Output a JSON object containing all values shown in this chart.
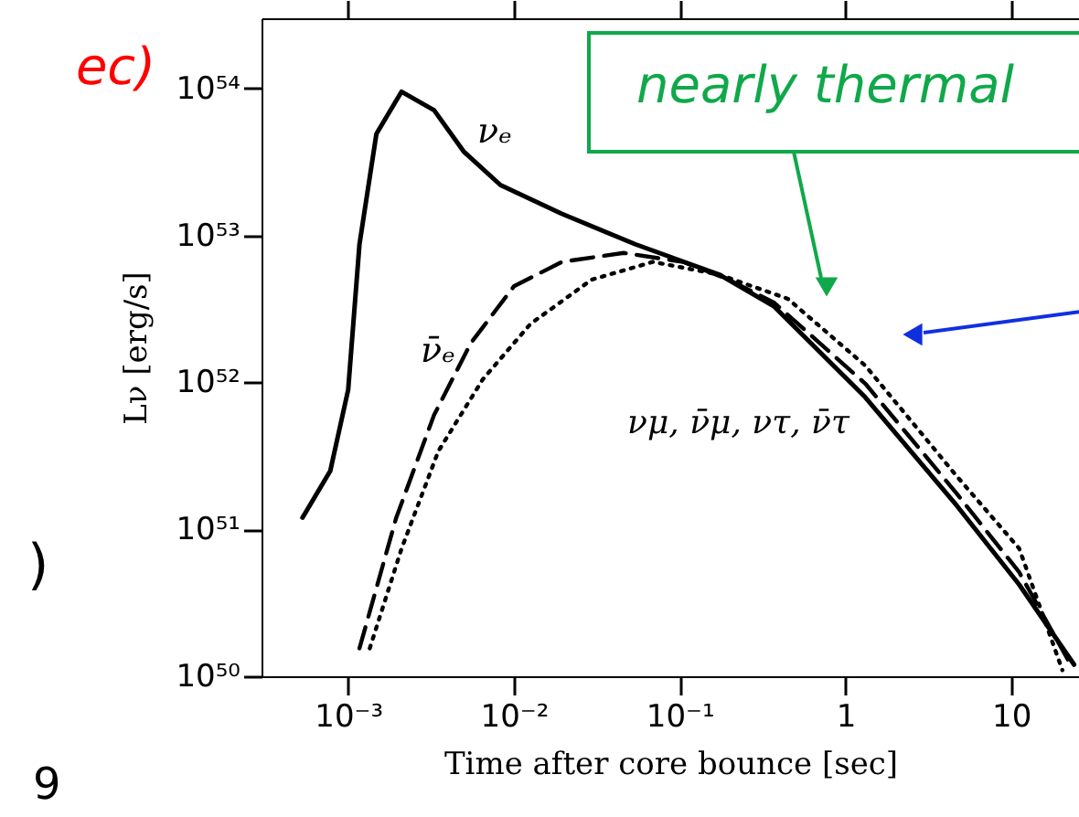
{
  "chart_data": {
    "type": "line",
    "xlabel": "Time after core bounce [sec]",
    "ylabel": "Lν [erg/s]",
    "log": "xy",
    "xlim": [
      0.0003,
      25.7
    ],
    "ylim": [
      1e+50,
      3e+54
    ],
    "xticks": [
      {
        "value": 0.001,
        "label": "10⁻³"
      },
      {
        "value": 0.01,
        "label": "10⁻²"
      },
      {
        "value": 0.1,
        "label": "10⁻¹"
      },
      1,
      10
    ],
    "yticks": [
      {
        "value": 1e+50,
        "label": "10⁵⁰"
      },
      {
        "value": 1e+51,
        "label": "10⁵¹"
      },
      {
        "value": 1e+52,
        "label": "10⁵²"
      },
      {
        "value": 1e+53,
        "label": "10⁵³"
      },
      {
        "value": 1e+54,
        "label": "10⁵⁴"
      }
    ],
    "grid": false,
    "marker": "none",
    "series": [
      {
        "color": "#000000",
        "line_style": "solid",
        "x": [
          0.00053,
          0.00078,
          0.001,
          0.00117,
          0.00148,
          0.0021,
          0.0033,
          0.005,
          0.0083,
          0.0195,
          0.054,
          0.174,
          0.37,
          1.32,
          4.7,
          11.2,
          24
        ],
        "values": [
          1.2e+51,
          2.5e+51,
          8.9e+51,
          8.7e+52,
          4.9e+53,
          9.5e+53,
          7.1e+53,
          3.7e+53,
          2.2e+53,
          1.4e+53,
          8.7e+52,
          5.4e+52,
          3.3e+52,
          7.9e+51,
          1.45e+51,
          4.2e+50,
          1.2e+50
        ]
      },
      {
        "color": "#000000",
        "line_style": "dashed",
        "x": [
          0.00117,
          0.00195,
          0.0033,
          0.0055,
          0.01,
          0.0195,
          0.046,
          0.105,
          0.19,
          0.37,
          1.32,
          4.7,
          11.2,
          22
        ],
        "values": [
          1.55e+50,
          1.2e+51,
          6e+51,
          1.85e+52,
          4.5e+52,
          6.6e+52,
          7.6e+52,
          6.6e+52,
          5.1e+52,
          3.5e+52,
          9.8e+51,
          1.75e+51,
          5.1e+50,
          1.3e+50
        ]
      },
      {
        "color": "#000000",
        "line_style": "dotted",
        "x": [
          0.00135,
          0.0021,
          0.0035,
          0.0065,
          0.0126,
          0.0295,
          0.069,
          0.174,
          0.45,
          1.32,
          4.7,
          11.2,
          20.4
        ],
        "values": [
          1.55e+50,
          7.4e+50,
          3.4e+51,
          1.05e+52,
          2.5e+52,
          5e+52,
          6.6e+52,
          5.4e+52,
          3.7e+52,
          1.3e+52,
          2.3e+51,
          7.4e+50,
          1.1e+50
        ]
      }
    ],
    "annotations": [
      "νₑ",
      "ν̄ₑ",
      "νμ, ν̄μ, ντ, ν̄τ",
      "nearly thermal",
      "ec)",
      ")",
      "9"
    ]
  }
}
